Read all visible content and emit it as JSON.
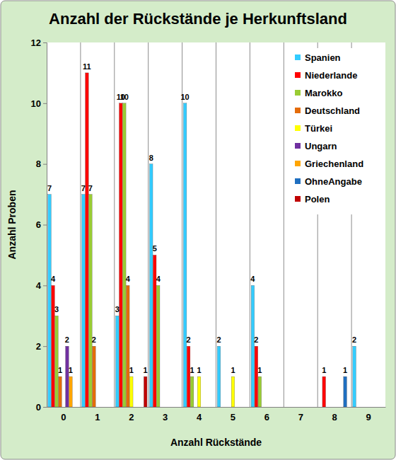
{
  "chart_data": {
    "type": "bar",
    "title": "Anzahl der Rückstände je Herkunftsland",
    "x_label": "Anzahl Rückstände",
    "y_label": "Anzahl Proben",
    "categories": [
      "0",
      "1",
      "2",
      "3",
      "4",
      "5",
      "6",
      "7",
      "8",
      "9"
    ],
    "series": [
      {
        "name": "Spanien",
        "color": "#33ccff",
        "values": [
          7,
          7,
          3,
          8,
          10,
          2,
          4,
          null,
          null,
          2
        ]
      },
      {
        "name": "Niederlande",
        "color": "#ff0000",
        "values": [
          4,
          11,
          10,
          5,
          2,
          null,
          2,
          null,
          1,
          null
        ]
      },
      {
        "name": "Marokko",
        "color": "#99cc33",
        "values": [
          3,
          7,
          10,
          4,
          1,
          null,
          1,
          null,
          null,
          null
        ]
      },
      {
        "name": "Deutschland",
        "color": "#e46c0a",
        "values": [
          1,
          2,
          4,
          null,
          null,
          null,
          null,
          null,
          null,
          null
        ]
      },
      {
        "name": "Türkei",
        "color": "#ffff00",
        "values": [
          null,
          null,
          1,
          null,
          1,
          1,
          null,
          null,
          null,
          null
        ]
      },
      {
        "name": "Ungarn",
        "color": "#7030a0",
        "values": [
          2,
          null,
          null,
          null,
          null,
          null,
          null,
          null,
          null,
          null
        ]
      },
      {
        "name": "Griechenland",
        "color": "#ffa500",
        "values": [
          1,
          null,
          null,
          null,
          null,
          null,
          null,
          null,
          null,
          null
        ]
      },
      {
        "name": "OhneAngabe",
        "color": "#1f6fc0",
        "values": [
          null,
          null,
          null,
          null,
          null,
          null,
          null,
          null,
          1,
          null
        ]
      },
      {
        "name": "Polen",
        "color": "#c00000",
        "values": [
          null,
          null,
          1,
          null,
          null,
          null,
          null,
          null,
          null,
          null
        ]
      }
    ],
    "ylim": [
      0,
      12
    ],
    "yticks": [
      0,
      2,
      4,
      6,
      8,
      10,
      12
    ],
    "grid": true,
    "legend": "upper right",
    "data_labels": true
  }
}
